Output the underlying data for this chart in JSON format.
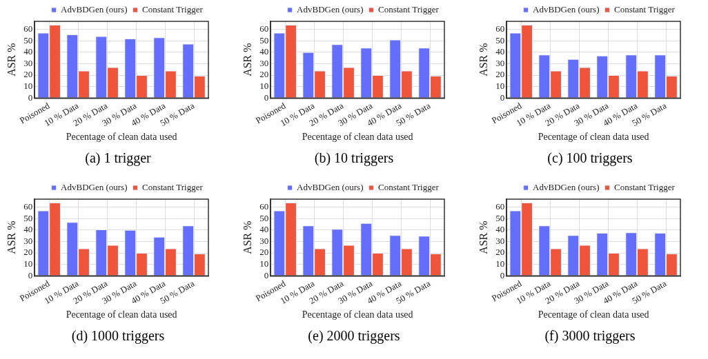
{
  "chart_data": [
    {
      "type": "bar",
      "categories": [
        "Poisoned",
        "10 % Data",
        "20 % Data",
        "30 % Data",
        "40 % Data",
        "50 % Data"
      ],
      "ylabel": "ASR %",
      "xlabel": "Pecentage of clean data used",
      "ylim": [
        0,
        67
      ],
      "yticks": [
        0,
        10,
        20,
        30,
        40,
        50,
        60
      ],
      "grid": true,
      "legend": "top",
      "annotations": [
        "(a) 1 trigger"
      ],
      "series": [
        {
          "name": "AdvBDGen (ours)",
          "color": "#636efa",
          "values": [
            57,
            55.5,
            54,
            52,
            53,
            47.5
          ]
        },
        {
          "name": "Constant Trigger",
          "color": "#ef553b",
          "values": [
            64,
            24,
            27,
            20,
            24,
            19.5
          ]
        }
      ]
    },
    {
      "type": "bar",
      "categories": [
        "Poisoned",
        "10 % Data",
        "20 % Data",
        "30 % Data",
        "40 % Data",
        "50 % Data"
      ],
      "ylabel": "ASR %",
      "xlabel": "Pecentage of clean data used",
      "ylim": [
        0,
        67
      ],
      "yticks": [
        0,
        10,
        20,
        30,
        40,
        50,
        60
      ],
      "grid": true,
      "legend": "top",
      "annotations": [
        "(b) 10 triggers"
      ],
      "series": [
        {
          "name": "AdvBDGen (ours)",
          "color": "#636efa",
          "values": [
            57,
            40,
            47,
            44,
            51,
            44
          ]
        },
        {
          "name": "Constant Trigger",
          "color": "#ef553b",
          "values": [
            64,
            24,
            27,
            20,
            24,
            19.5
          ]
        }
      ]
    },
    {
      "type": "bar",
      "categories": [
        "Poisoned",
        "10 % Data",
        "20 % Data",
        "30 % Data",
        "40 % Data",
        "50 % Data"
      ],
      "ylabel": "ASR %",
      "xlabel": "Pecentage of clean data used",
      "ylim": [
        0,
        67
      ],
      "yticks": [
        0,
        10,
        20,
        30,
        40,
        50,
        60
      ],
      "grid": true,
      "legend": "top",
      "annotations": [
        "(c) 100 triggers"
      ],
      "series": [
        {
          "name": "AdvBDGen (ours)",
          "color": "#636efa",
          "values": [
            57,
            38,
            34,
            37,
            38,
            38
          ]
        },
        {
          "name": "Constant Trigger",
          "color": "#ef553b",
          "values": [
            64,
            24,
            27,
            20,
            24,
            19.5
          ]
        }
      ]
    },
    {
      "type": "bar",
      "categories": [
        "Poisoned",
        "10 % Data",
        "20 % Data",
        "30 % Data",
        "40 % Data",
        "50 % Data"
      ],
      "ylabel": "ASR %",
      "xlabel": "Pecentage of clean data used",
      "ylim": [
        0,
        67
      ],
      "yticks": [
        0,
        10,
        20,
        30,
        40,
        50,
        60
      ],
      "grid": true,
      "legend": "top",
      "annotations": [
        "(d) 1000 triggers"
      ],
      "series": [
        {
          "name": "AdvBDGen (ours)",
          "color": "#636efa",
          "values": [
            57,
            47,
            40.5,
            40,
            34,
            44
          ]
        },
        {
          "name": "Constant Trigger",
          "color": "#ef553b",
          "values": [
            64,
            24,
            27,
            20,
            24,
            19.5
          ]
        }
      ]
    },
    {
      "type": "bar",
      "categories": [
        "Poisoned",
        "10 % Data",
        "20 % Data",
        "30 % Data",
        "40 % Data",
        "50 % Data"
      ],
      "ylabel": "ASR %",
      "xlabel": "Pecentage of clean data used",
      "ylim": [
        0,
        67
      ],
      "yticks": [
        0,
        10,
        20,
        30,
        40,
        50,
        60
      ],
      "grid": true,
      "legend": "top",
      "annotations": [
        "(e) 2000 triggers"
      ],
      "series": [
        {
          "name": "AdvBDGen (ours)",
          "color": "#636efa",
          "values": [
            57,
            44,
            41,
            46,
            35.5,
            35
          ]
        },
        {
          "name": "Constant Trigger",
          "color": "#ef553b",
          "values": [
            64,
            24,
            27,
            20,
            24,
            19.5
          ]
        }
      ]
    },
    {
      "type": "bar",
      "categories": [
        "Poisoned",
        "10 % Data",
        "20 % Data",
        "30 % Data",
        "40 % Data",
        "50 % Data"
      ],
      "ylabel": "ASR %",
      "xlabel": "Pecentage of clean data used",
      "ylim": [
        0,
        67
      ],
      "yticks": [
        0,
        10,
        20,
        30,
        40,
        50,
        60
      ],
      "grid": true,
      "legend": "top",
      "annotations": [
        "(f) 3000 triggers"
      ],
      "series": [
        {
          "name": "AdvBDGen (ours)",
          "color": "#636efa",
          "values": [
            57,
            44,
            35.5,
            37.5,
            38,
            37.5
          ]
        },
        {
          "name": "Constant Trigger",
          "color": "#ef553b",
          "values": [
            64,
            24,
            27,
            20,
            24,
            19.5
          ]
        }
      ]
    }
  ]
}
